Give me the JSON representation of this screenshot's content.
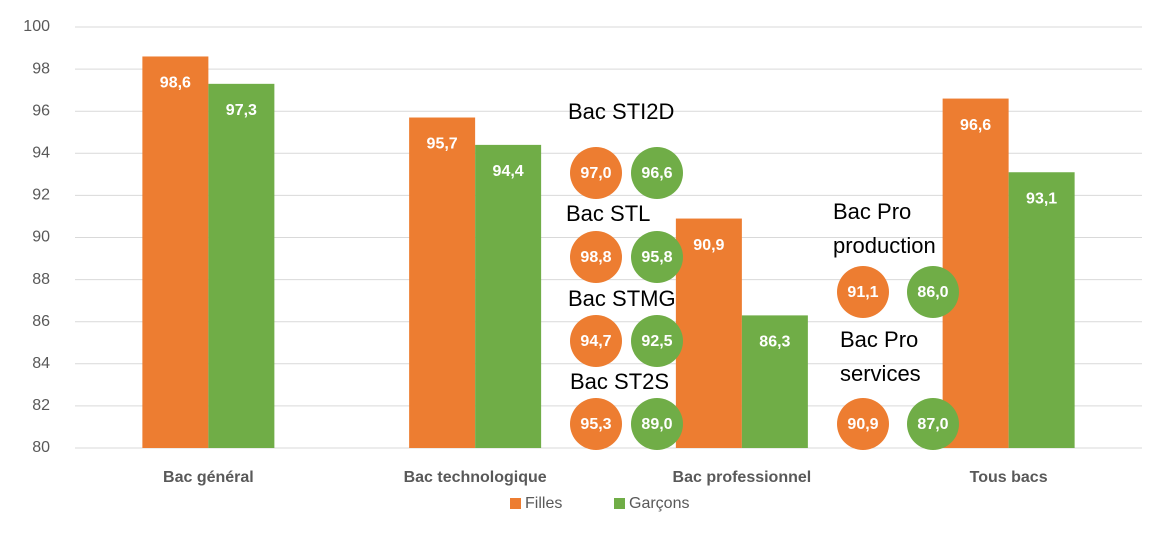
{
  "chart_data": {
    "type": "bar",
    "categories": [
      "Bac général",
      "Bac technologique",
      "Bac professionnel",
      "Tous bacs"
    ],
    "series": [
      {
        "name": "Filles",
        "color": "#ed7d31",
        "values": [
          98.6,
          95.7,
          90.9,
          96.6
        ],
        "value_labels": [
          "98,6",
          "95,7",
          "90,9",
          "96,6"
        ]
      },
      {
        "name": "Garçons",
        "color": "#70ad47",
        "values": [
          97.3,
          94.4,
          86.3,
          93.1
        ],
        "value_labels": [
          "97,3",
          "94,4",
          "86,3",
          "93,1"
        ]
      }
    ],
    "ylim": [
      80,
      100
    ],
    "yticks": [
      80,
      82,
      84,
      86,
      88,
      90,
      92,
      94,
      96,
      98,
      100
    ],
    "grid": true,
    "legend": "bottom",
    "annotations": [
      {
        "label": [
          "Bac STI2D"
        ],
        "values": [
          97.0,
          96.6
        ],
        "value_labels": [
          "97,0",
          "96,6"
        ]
      },
      {
        "label": [
          "Bac STL"
        ],
        "values": [
          98.8,
          95.8
        ],
        "value_labels": [
          "98,8",
          "95,8"
        ]
      },
      {
        "label": [
          "Bac STMG"
        ],
        "values": [
          94.7,
          92.5
        ],
        "value_labels": [
          "94,7",
          "92,5"
        ]
      },
      {
        "label": [
          "Bac ST2S"
        ],
        "values": [
          95.3,
          89.0
        ],
        "value_labels": [
          "95,3",
          "89,0"
        ]
      },
      {
        "label": [
          "Bac Pro",
          "production"
        ],
        "values": [
          91.1,
          86.0
        ],
        "value_labels": [
          "91,1",
          "86,0"
        ]
      },
      {
        "label": [
          "Bac Pro",
          "services"
        ],
        "values": [
          90.9,
          87.0
        ],
        "value_labels": [
          "90,9",
          "87,0"
        ]
      }
    ]
  }
}
